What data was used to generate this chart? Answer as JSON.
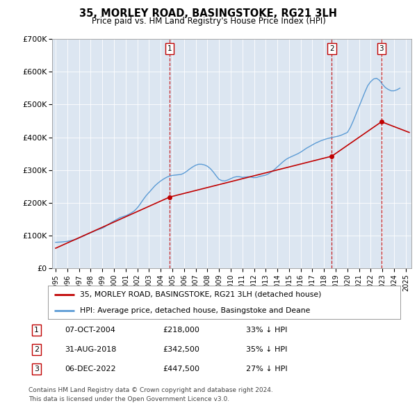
{
  "title": "35, MORLEY ROAD, BASINGSTOKE, RG21 3LH",
  "subtitle": "Price paid vs. HM Land Registry's House Price Index (HPI)",
  "legend_line1": "35, MORLEY ROAD, BASINGSTOKE, RG21 3LH (detached house)",
  "legend_line2": "HPI: Average price, detached house, Basingstoke and Deane",
  "footer1": "Contains HM Land Registry data © Crown copyright and database right 2024.",
  "footer2": "This data is licensed under the Open Government Licence v3.0.",
  "ylim": [
    0,
    700000
  ],
  "yticks": [
    0,
    100000,
    200000,
    300000,
    400000,
    500000,
    600000,
    700000
  ],
  "ytick_labels": [
    "£0",
    "£100K",
    "£200K",
    "£300K",
    "£400K",
    "£500K",
    "£600K",
    "£700K"
  ],
  "xlim_start": 1994.7,
  "xlim_end": 2025.5,
  "hpi_color": "#5b9bd5",
  "sale_color": "#c00000",
  "bg_color": "#dce6f1",
  "grid_color": "#ffffff",
  "sale_events": [
    {
      "num": 1,
      "year": 2004.77,
      "price": 218000,
      "label": "07-OCT-2004",
      "price_str": "£218,000",
      "pct_str": "33% ↓ HPI"
    },
    {
      "num": 2,
      "year": 2018.66,
      "price": 342500,
      "label": "31-AUG-2018",
      "price_str": "£342,500",
      "pct_str": "35% ↓ HPI"
    },
    {
      "num": 3,
      "year": 2022.92,
      "price": 447500,
      "label": "06-DEC-2022",
      "price_str": "£447,500",
      "pct_str": "27% ↓ HPI"
    }
  ],
  "hpi_data": {
    "years": [
      1995.0,
      1995.25,
      1995.5,
      1995.75,
      1996.0,
      1996.25,
      1996.5,
      1996.75,
      1997.0,
      1997.25,
      1997.5,
      1997.75,
      1998.0,
      1998.25,
      1998.5,
      1998.75,
      1999.0,
      1999.25,
      1999.5,
      1999.75,
      2000.0,
      2000.25,
      2000.5,
      2000.75,
      2001.0,
      2001.25,
      2001.5,
      2001.75,
      2002.0,
      2002.25,
      2002.5,
      2002.75,
      2003.0,
      2003.25,
      2003.5,
      2003.75,
      2004.0,
      2004.25,
      2004.5,
      2004.75,
      2005.0,
      2005.25,
      2005.5,
      2005.75,
      2006.0,
      2006.25,
      2006.5,
      2006.75,
      2007.0,
      2007.25,
      2007.5,
      2007.75,
      2008.0,
      2008.25,
      2008.5,
      2008.75,
      2009.0,
      2009.25,
      2009.5,
      2009.75,
      2010.0,
      2010.25,
      2010.5,
      2010.75,
      2011.0,
      2011.25,
      2011.5,
      2011.75,
      2012.0,
      2012.25,
      2012.5,
      2012.75,
      2013.0,
      2013.25,
      2013.5,
      2013.75,
      2014.0,
      2014.25,
      2014.5,
      2014.75,
      2015.0,
      2015.25,
      2015.5,
      2015.75,
      2016.0,
      2016.25,
      2016.5,
      2016.75,
      2017.0,
      2017.25,
      2017.5,
      2017.75,
      2018.0,
      2018.25,
      2018.5,
      2018.75,
      2019.0,
      2019.25,
      2019.5,
      2019.75,
      2020.0,
      2020.25,
      2020.5,
      2020.75,
      2021.0,
      2021.25,
      2021.5,
      2021.75,
      2022.0,
      2022.25,
      2022.5,
      2022.75,
      2023.0,
      2023.25,
      2023.5,
      2023.75,
      2024.0,
      2024.25,
      2024.5
    ],
    "values": [
      80000,
      80500,
      81000,
      82000,
      83000,
      85000,
      87000,
      89000,
      93000,
      97000,
      101000,
      105000,
      109000,
      113000,
      117000,
      120000,
      123000,
      128000,
      134000,
      140000,
      145000,
      150000,
      155000,
      158000,
      161000,
      165000,
      170000,
      176000,
      185000,
      197000,
      210000,
      222000,
      232000,
      242000,
      252000,
      260000,
      267000,
      273000,
      278000,
      282000,
      284000,
      285000,
      286000,
      287000,
      291000,
      297000,
      304000,
      310000,
      315000,
      318000,
      318000,
      316000,
      312000,
      305000,
      295000,
      283000,
      272000,
      268000,
      267000,
      270000,
      274000,
      278000,
      280000,
      280000,
      278000,
      279000,
      280000,
      279000,
      277000,
      278000,
      281000,
      283000,
      285000,
      289000,
      295000,
      302000,
      310000,
      318000,
      326000,
      333000,
      338000,
      342000,
      346000,
      350000,
      355000,
      361000,
      367000,
      372000,
      377000,
      382000,
      386000,
      390000,
      393000,
      396000,
      398000,
      400000,
      402000,
      404000,
      407000,
      411000,
      415000,
      430000,
      450000,
      472000,
      494000,
      516000,
      538000,
      558000,
      570000,
      578000,
      580000,
      574000,
      562000,
      552000,
      546000,
      542000,
      542000,
      545000,
      550000
    ]
  },
  "red_line": {
    "x": [
      1995.0,
      2004.77,
      2018.66,
      2022.92,
      2025.3
    ],
    "y": [
      62000,
      218000,
      342500,
      447500,
      415000
    ]
  }
}
